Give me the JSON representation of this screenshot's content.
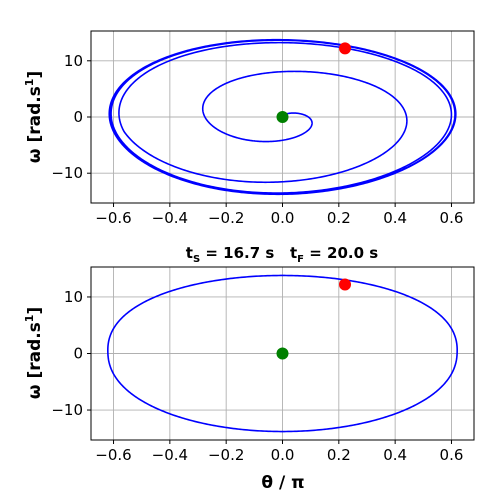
{
  "chart_data": [
    {
      "type": "line",
      "panel": "top",
      "title": "",
      "xlabel": "",
      "ylabel_main": "ω [rad.s",
      "ylabel_sup": "1",
      "ylabel_end": "]",
      "xlim": [
        -0.68,
        0.68
      ],
      "ylim": [
        -15.3,
        15.3
      ],
      "xticks": [
        -0.6,
        -0.4,
        -0.2,
        0.0,
        0.2,
        0.4,
        0.6
      ],
      "xtick_labels": [
        "−0.6",
        "−0.4",
        "−0.2",
        "0.0",
        "0.2",
        "0.4",
        "0.6"
      ],
      "yticks": [
        -10,
        0,
        10
      ],
      "ytick_labels": [
        "−10",
        "0",
        "10"
      ],
      "grid": true,
      "series": [
        {
          "color": "#0000ff",
          "description": "phase trajectory spiralling out from origin to limit cycle",
          "spiral": {
            "amp_theta": 0.615,
            "amp_omega": 13.75,
            "start_theta": 0.0,
            "start_omega": 0.0,
            "turns": 5.5
          }
        }
      ],
      "markers": [
        {
          "x": 0.0,
          "y": 0.0,
          "color": "#008000"
        },
        {
          "x": 0.222,
          "y": 12.2,
          "color": "#ff0000"
        }
      ]
    },
    {
      "type": "line",
      "panel": "bottom",
      "title_t": "t",
      "title_s_sub": "S",
      "title_s_val": " = 16.7 s   t",
      "title_f_sub": "F",
      "title_f_val": " = 20.0 s",
      "xlabel": "θ / π",
      "ylabel_main": "ω [rad.s",
      "ylabel_sup": "1",
      "ylabel_end": "]",
      "xlim": [
        -0.68,
        0.68
      ],
      "ylim": [
        -15.3,
        15.3
      ],
      "xticks": [
        -0.6,
        -0.4,
        -0.2,
        0.0,
        0.2,
        0.4,
        0.6
      ],
      "xtick_labels": [
        "−0.6",
        "−0.4",
        "−0.2",
        "0.0",
        "0.2",
        "0.4",
        "0.6"
      ],
      "yticks": [
        -10,
        0,
        10
      ],
      "ytick_labels": [
        "−10",
        "0",
        "10"
      ],
      "grid": true,
      "series": [
        {
          "color": "#0000ff",
          "description": "closed limit cycle",
          "cycle": {
            "amp_theta": 0.62,
            "amp_omega": 13.8
          }
        }
      ],
      "markers": [
        {
          "x": 0.0,
          "y": 0.0,
          "color": "#008000"
        },
        {
          "x": 0.222,
          "y": 12.2,
          "color": "#ff0000"
        }
      ]
    }
  ]
}
